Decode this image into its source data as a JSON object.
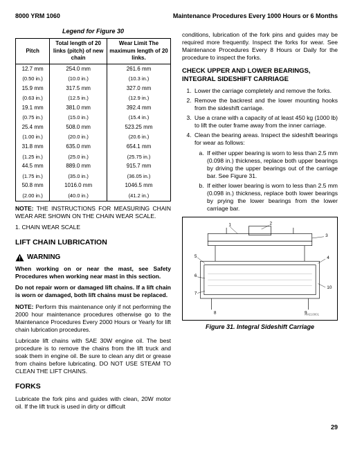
{
  "header": {
    "left": "8000 YRM 1060",
    "right": "Maintenance Procedures Every 1000 Hours or 6 Months"
  },
  "table": {
    "caption": "Legend for Figure 30",
    "headers": [
      "Pitch",
      "Total length of 20 links (pitch) of new chain",
      "Wear Limit The maximum length of 20 links."
    ],
    "rows": [
      [
        "12.7 mm",
        "254.0 mm",
        "261.6 mm"
      ],
      [
        "(0.50 in.)",
        "(10.0 in.)",
        "(10.3 in.)"
      ],
      [
        "15.9 mm",
        "317.5 mm",
        "327.0 mm"
      ],
      [
        "(0.63 in.)",
        "(12.5 in.)",
        "(12.9 in.)"
      ],
      [
        "19.1 mm",
        "381.0 mm",
        "392.4 mm"
      ],
      [
        "(0.75 in.)",
        "(15.0 in.)",
        "(15.4 in.)"
      ],
      [
        "25.4 mm",
        "508.0 mm",
        "523.25 mm"
      ],
      [
        "(1.00 in.)",
        "(20.0 in.)",
        "(20.6 in.)"
      ],
      [
        "31.8 mm",
        "635.0 mm",
        "654.1 mm"
      ],
      [
        "(1.25 in.)",
        "(25.0 in.)",
        "(25.75 in.)"
      ],
      [
        "44.5 mm",
        "889.0 mm",
        "915.7 mm"
      ],
      [
        "(1.75 in.)",
        "(35.0 in.)",
        "(36.05 in.)"
      ],
      [
        "50.8 mm",
        "1016.0 mm",
        "1046.5 mm"
      ],
      [
        "(2.00 in.)",
        "(40.0 in.)",
        "(41.2 in.)"
      ]
    ]
  },
  "left": {
    "note1": "NOTE: THE INSTRUCTIONS FOR MEASURING CHAIN WEAR ARE SHOWN ON THE CHAIN WEAR SCALE.",
    "list1": "1.   CHAIN WEAR SCALE",
    "h_lift": "LIFT CHAIN LUBRICATION",
    "warn": "WARNING",
    "warn_p1": "When working on or near the mast, see Safety Procedures when working near mast in this section.",
    "warn_p2": "Do not repair worn or damaged lift chains. If a lift chain is worn or damaged, both lift chains must be replaced.",
    "note2": "NOTE: Perform this maintenance only if not performing the 2000 hour maintenance procedures otherwise go to the Maintenance Procedures Every 2000 Hours or Yearly for lift chain lubrication procedures.",
    "p_lub": "Lubricate lift chains with SAE 30W engine oil. The best procedure is to remove the chains from the lift truck and soak them in engine oil. Be sure to clean any dirt or grease from chains before lubricating. DO NOT USE STEAM TO CLEAN THE LIFT CHAINS.",
    "h_forks": "FORKS",
    "p_forks": "Lubricate the fork pins and guides with clean, 20W motor oil.  If the lift truck is used in dirty or difficult"
  },
  "right": {
    "p_cont": "conditions, lubrication of the fork pins and guides may be required more frequently. Inspect the forks for wear. See Maintenance Procedures Every 8 Hours or Daily for the procedure to inspect the forks.",
    "h_check": "CHECK UPPER AND LOWER BEARINGS, INTEGRAL SIDESHIFT CARRIAGE",
    "steps": [
      "Lower the carriage completely and remove the forks.",
      "Remove the backrest and the lower mounting hooks from the sideshift carriage.",
      "Use a crane with a capacity of at least 450 kg (1000 lb) to lift the outer frame away from the inner carriage.",
      "Clean the bearing areas. Inspect the sideshift bearings for wear as follows:"
    ],
    "substeps": [
      "If either upper bearing is worn to less than 2.5 mm (0.098 in.) thickness, replace both upper bearings by driving the upper bearings out of the carriage bar. See Figure 31.",
      "If either lower bearing is worn to less than 2.5 mm (0.098 in.) thickness, replace both lower bearings by prying the lower bearings from the lower carriage bar."
    ],
    "fig_code": "HM210801",
    "fig_caption": "Figure 31. Integral Sideshift Carriage"
  },
  "page": "29"
}
